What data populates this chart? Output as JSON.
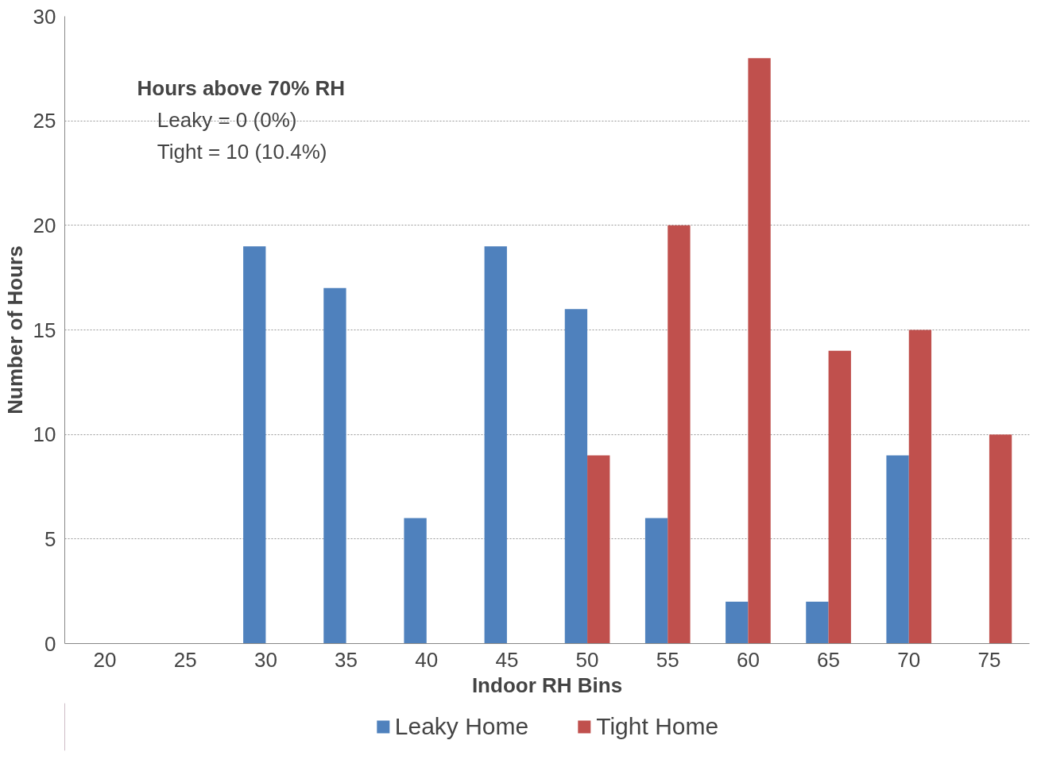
{
  "chart_data": {
    "type": "bar",
    "xlabel": "Indoor RH Bins",
    "ylabel": "Number of Hours",
    "categories": [
      "20",
      "25",
      "30",
      "35",
      "40",
      "45",
      "50",
      "55",
      "60",
      "65",
      "70",
      "75"
    ],
    "series": [
      {
        "name": "Leaky Home",
        "color": "#4f81bd",
        "values": [
          0,
          0,
          19,
          17,
          6,
          19,
          16,
          6,
          2,
          2,
          9,
          0
        ]
      },
      {
        "name": "Tight Home",
        "color": "#c0504d",
        "values": [
          0,
          0,
          0,
          0,
          0,
          0,
          9,
          20,
          28,
          14,
          15,
          10
        ]
      }
    ],
    "ylim": [
      0,
      30
    ],
    "yticks": [
      0,
      5,
      10,
      15,
      20,
      25,
      30
    ],
    "grid": "y",
    "legend": "bottom",
    "annotations": [
      "Hours above 70% RH",
      "Leaky = 0 (0%)",
      "Tight = 10 (10.4%)"
    ]
  }
}
